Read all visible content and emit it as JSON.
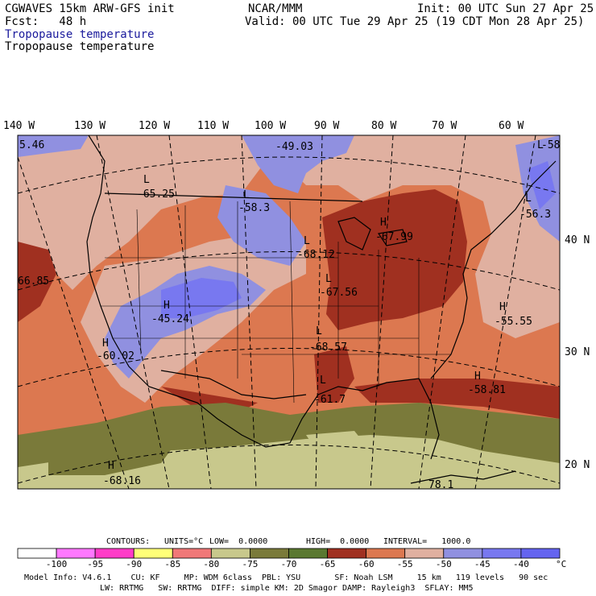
{
  "header": {
    "model": "CGWAVES 15km ARW-GFS init",
    "fcst": "Fcst:   48 h",
    "org": "NCAR/MMM",
    "init": "Init: 00 UTC Sun 27 Apr 25",
    "valid": "Valid: 00 UTC Tue 29 Apr 25 (19 CDT Mon 28 Apr 25)",
    "field1": "Tropopause temperature",
    "field2": "Tropopause temperature"
  },
  "map": {
    "lon_labels": [
      "140 W",
      "130 W",
      "120 W",
      "110 W",
      "100 W",
      "90 W",
      "80 W",
      "70 W",
      "60 W"
    ],
    "lat_labels": [
      "40 N",
      "30 N",
      "20 N"
    ],
    "highs_lows": [
      {
        "type": "L",
        "value": "-65.25"
      },
      {
        "type": "L",
        "value": "-58.3"
      },
      {
        "type": "L",
        "value": "-68.12"
      },
      {
        "type": "L",
        "value": "-67.56"
      },
      {
        "type": "L",
        "value": "-68.57"
      },
      {
        "type": "L",
        "value": "-61.7"
      },
      {
        "type": "L",
        "value": "-56.3"
      },
      {
        "type": "L",
        "value": "-58"
      },
      {
        "type": "H",
        "value": "-67.99"
      },
      {
        "type": "H",
        "value": "-45.24"
      },
      {
        "type": "H",
        "value": "-60.02"
      },
      {
        "type": "H",
        "value": "-55.55"
      },
      {
        "type": "H",
        "value": "-58.81"
      },
      {
        "type": "H",
        "value": "-68.16"
      }
    ],
    "edge_values": [
      "-49.03",
      "5.46",
      "66.85",
      "78.1"
    ]
  },
  "contours": {
    "label": "CONTOURS:",
    "units": "UNITS=°C",
    "low": "LOW=  0.0000",
    "high": "HIGH=  0.0000",
    "interval": "INTERVAL=   1000.0"
  },
  "colorbar": {
    "colors": [
      "#ffffff",
      "#ff78ff",
      "#ff3cc8",
      "#ffff78",
      "#f07878",
      "#c8c88c",
      "#7a7a3a",
      "#5a7830",
      "#a03020",
      "#dc7850",
      "#e0b0a0",
      "#9090e0",
      "#7878f0",
      "#6464f0"
    ],
    "labels": [
      "-100",
      "-95",
      "-90",
      "-85",
      "-80",
      "-75",
      "-70",
      "-65",
      "-60",
      "-55",
      "-50",
      "-45",
      "-40"
    ],
    "unit": "°C"
  },
  "footer": {
    "line1": "Model Info: V4.6.1    CU: KF     MP: WDM 6class  PBL: YSU       SF: Noah LSM     15 km   119 levels   90 sec",
    "line2": "LW: RRTMG   SW: RRTMG  DIFF: simple KM: 2D Smagor DAMP: Rayleigh3  SFLAY: MM5"
  }
}
